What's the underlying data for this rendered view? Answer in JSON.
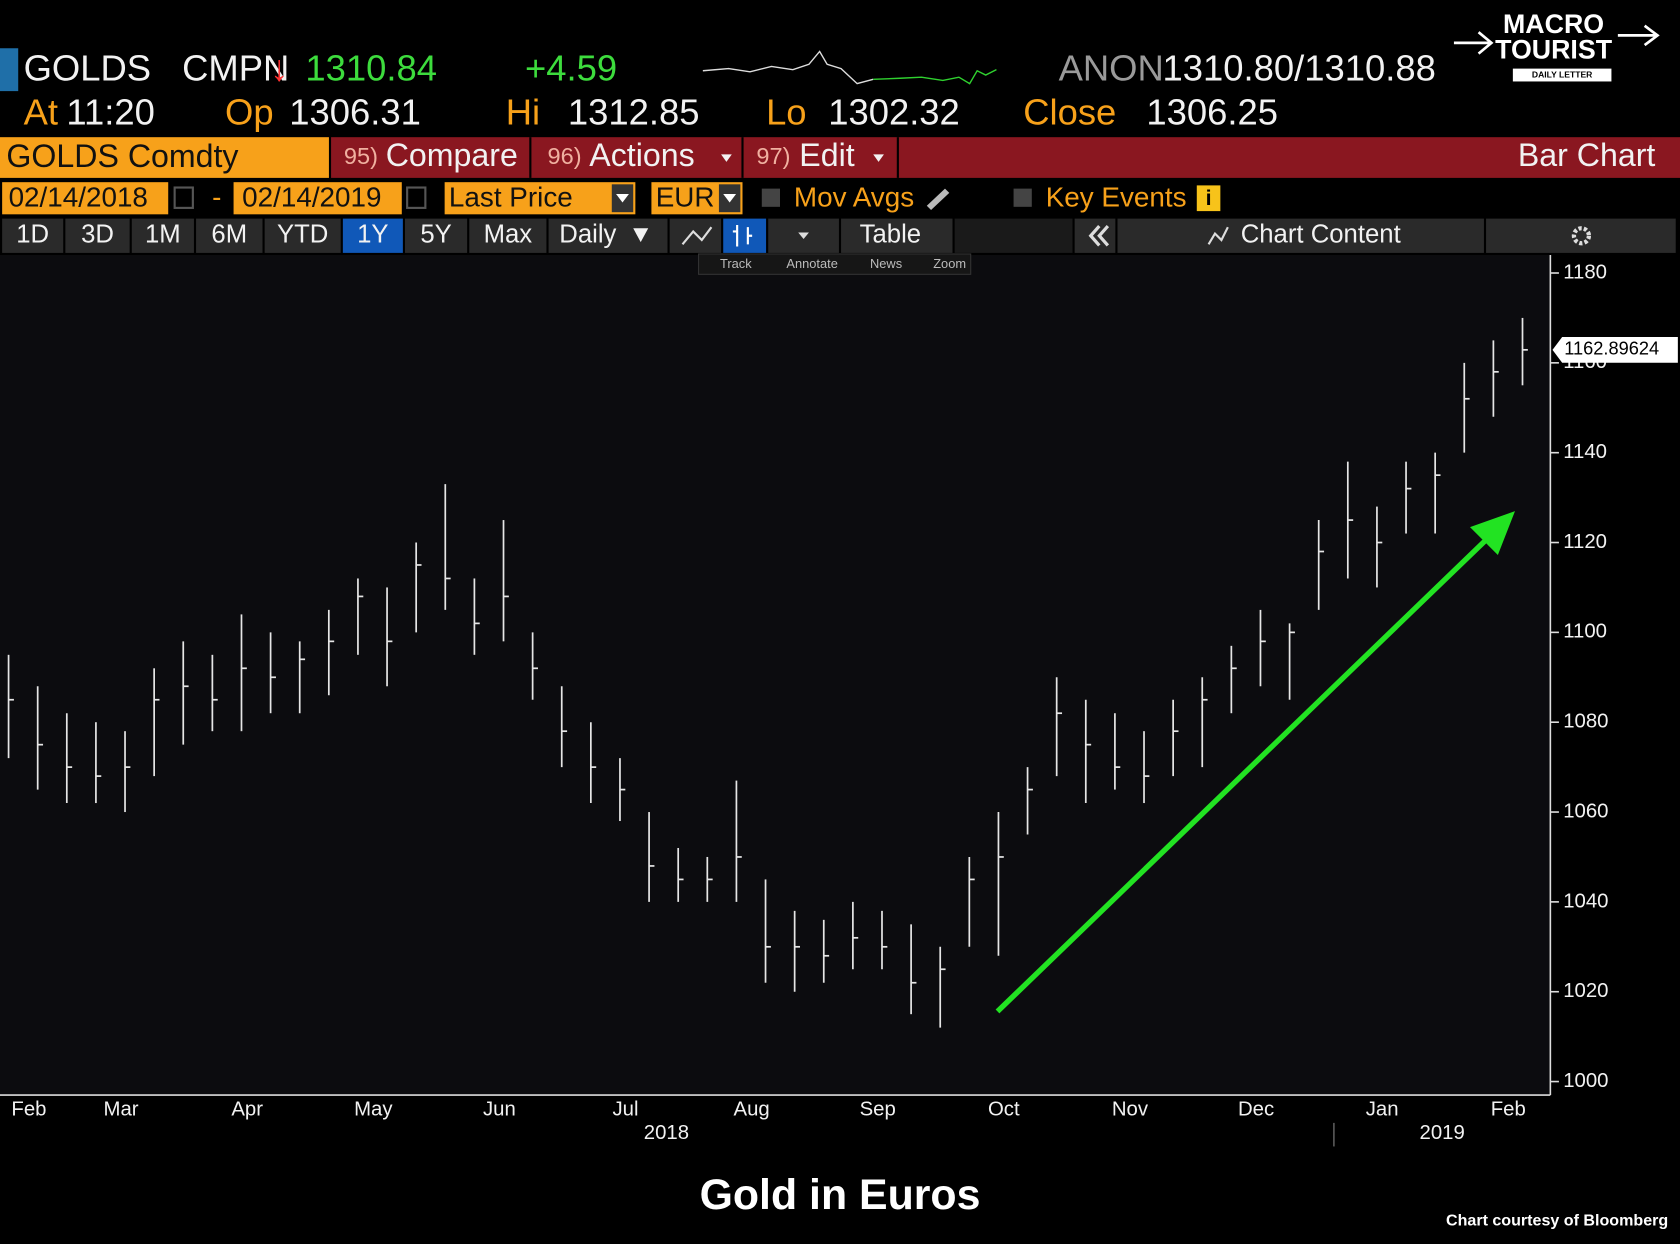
{
  "header": {
    "ticker": "GOLDS",
    "source": "CMPN",
    "direction": "↓",
    "last": "1310.84",
    "change": "+4.59",
    "dealer": "ANON",
    "bid_ask": "1310.80/1310.88",
    "at_label": "At",
    "at": "11:20",
    "open_label": "Op",
    "open": "1306.31",
    "high_label": "Hi",
    "high": "1312.85",
    "low_label": "Lo",
    "low": "1302.32",
    "close_label": "Close",
    "close": "1306.25"
  },
  "toolbar": {
    "security": "GOLDS Comdty",
    "menus": [
      {
        "key": "95)",
        "label": "Compare"
      },
      {
        "key": "96)",
        "label": "Actions"
      },
      {
        "key": "97)",
        "label": "Edit"
      }
    ],
    "view": "Bar Chart",
    "start_date": "02/14/2018",
    "date_sep": "-",
    "end_date": "02/14/2019",
    "field": "Last Price",
    "currency": "EUR",
    "mov_avgs": "Mov Avgs",
    "key_events": "Key Events",
    "periods": [
      "1D",
      "3D",
      "1M",
      "6M",
      "YTD",
      "1Y",
      "5Y",
      "Max"
    ],
    "frequency": "Daily",
    "table": "Table",
    "chart_content": "Chart Content",
    "tools": [
      "Track",
      "Annotate",
      "News",
      "Zoom"
    ]
  },
  "logo": {
    "line1": "MACRO",
    "line2": "TOURIST",
    "line3": "DAILY LETTER"
  },
  "chart_data": {
    "type": "ohlc",
    "color": "#e6e6e6",
    "categories": [
      null,
      null,
      null,
      null,
      null,
      null,
      null,
      null,
      null,
      null,
      null,
      null,
      null,
      null,
      null,
      null,
      null,
      null,
      null,
      null,
      null,
      null,
      null,
      null,
      null,
      null,
      null,
      null,
      null,
      null,
      null,
      null,
      null,
      null,
      null,
      null,
      null,
      null,
      null,
      null,
      null,
      null,
      null,
      null,
      null,
      null,
      null,
      null,
      null,
      null,
      null,
      null,
      null
    ],
    "high": [
      1095,
      1088,
      1082,
      1080,
      1078,
      1092,
      1098,
      1095,
      1104,
      1100,
      1098,
      1105,
      1112,
      1110,
      1120,
      1133,
      1112,
      1125,
      1100,
      1088,
      1080,
      1072,
      1060,
      1052,
      1050,
      1067,
      1045,
      1038,
      1036,
      1040,
      1038,
      1035,
      1030,
      1050,
      1060,
      1070,
      1090,
      1085,
      1082,
      1078,
      1085,
      1090,
      1097,
      1105,
      1102,
      1125,
      1138,
      1128,
      1138,
      1140,
      1160,
      1165,
      1170
    ],
    "low": [
      1072,
      1065,
      1062,
      1062,
      1060,
      1068,
      1075,
      1078,
      1078,
      1082,
      1082,
      1086,
      1095,
      1088,
      1100,
      1105,
      1095,
      1098,
      1085,
      1070,
      1062,
      1058,
      1040,
      1040,
      1040,
      1040,
      1022,
      1020,
      1022,
      1025,
      1025,
      1015,
      1012,
      1030,
      1028,
      1055,
      1068,
      1062,
      1065,
      1062,
      1068,
      1070,
      1082,
      1088,
      1085,
      1105,
      1112,
      1110,
      1122,
      1122,
      1140,
      1148,
      1155
    ],
    "close": [
      1085,
      1075,
      1070,
      1068,
      1070,
      1085,
      1088,
      1085,
      1092,
      1090,
      1094,
      1098,
      1108,
      1098,
      1115,
      1112,
      1102,
      1108,
      1092,
      1078,
      1070,
      1065,
      1048,
      1045,
      1045,
      1050,
      1030,
      1030,
      1028,
      1032,
      1030,
      1022,
      1025,
      1045,
      1050,
      1065,
      1082,
      1075,
      1070,
      1068,
      1078,
      1085,
      1092,
      1098,
      1100,
      1118,
      1125,
      1120,
      1132,
      1135,
      1152,
      1158,
      1162.89624
    ],
    "ylim": [
      997,
      1184
    ],
    "yticks": [
      1000,
      1020,
      1040,
      1060,
      1080,
      1100,
      1120,
      1140,
      1160,
      1180
    ],
    "month_labels": [
      "Feb",
      "Mar",
      "Apr",
      "May",
      "Jun",
      "Jul",
      "Aug",
      "Sep",
      "Oct",
      "Nov",
      "Dec",
      "Jan",
      "Feb"
    ],
    "year_labels": [
      "2018",
      "2019"
    ]
  },
  "caption": "Gold in Euros",
  "credit": "Chart courtesy of Bloomberg"
}
